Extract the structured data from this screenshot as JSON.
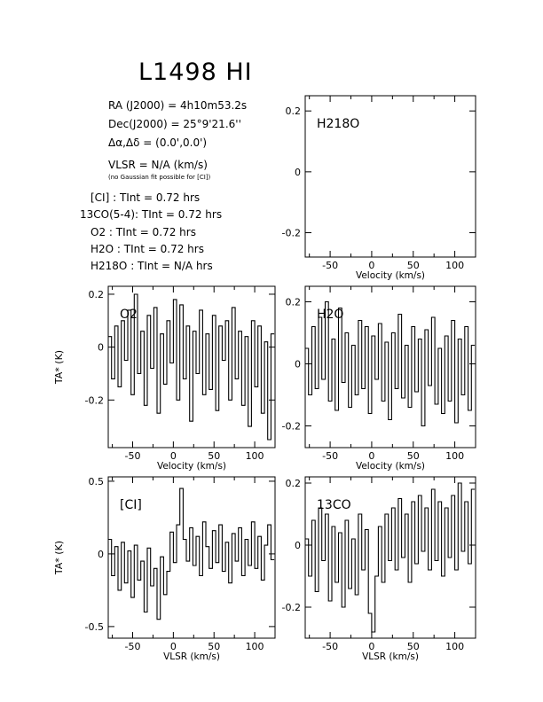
{
  "title": "L1498 HI",
  "info": {
    "ra": "RA (J2000) =  4h10m53.2s",
    "dec": "Dec(J2000) =  25°9'21.6''",
    "offset": "Δα,Δδ = (0.0',0.0')",
    "vlsr": "VLSR  = N/A  (km/s)",
    "note": "(no Gaussian fit possible for [CI])",
    "tint": [
      "[CI] :  TInt = 0.72 hrs",
      "13CO(5-4): TInt = 0.72 hrs",
      "O2 :  TInt = 0.72 hrs",
      "H2O :  TInt = 0.72 hrs",
      "H218O :  TInt = N/A  hrs"
    ]
  },
  "chart_data": [
    {
      "type": "line",
      "panel": "top-right",
      "annotation": "H218O",
      "xlabel": "Velocity (km/s)",
      "ylabel": "",
      "xlim": [
        -80,
        125
      ],
      "ylim": [
        -0.28,
        0.25
      ],
      "xticks": [
        -50,
        0,
        50,
        100
      ],
      "yticks": [
        -0.2,
        0,
        0.2
      ],
      "series": [
        {
          "x": [],
          "y": []
        }
      ]
    },
    {
      "type": "line",
      "panel": "middle-left",
      "annotation": "O2",
      "xlabel": "Velocity (km/s)",
      "ylabel": "TA* (K)",
      "xlim": [
        -80,
        125
      ],
      "ylim": [
        -0.38,
        0.23
      ],
      "xticks": [
        -50,
        0,
        50,
        100
      ],
      "yticks": [
        -0.2,
        0,
        0.2
      ],
      "series": [
        {
          "x": [
            -78,
            -74,
            -70,
            -66,
            -62,
            -58,
            -54,
            -50,
            -46,
            -42,
            -38,
            -34,
            -30,
            -26,
            -22,
            -18,
            -14,
            -10,
            -6,
            -2,
            2,
            6,
            10,
            14,
            18,
            22,
            26,
            30,
            34,
            38,
            42,
            46,
            50,
            54,
            58,
            62,
            66,
            70,
            74,
            78,
            82,
            86,
            90,
            94,
            98,
            102,
            106,
            110,
            114,
            118,
            122
          ],
          "y": [
            0.04,
            -0.12,
            0.08,
            -0.15,
            0.1,
            -0.05,
            0.14,
            -0.18,
            0.2,
            -0.1,
            0.06,
            -0.22,
            0.12,
            -0.08,
            0.15,
            -0.25,
            0.05,
            -0.14,
            0.1,
            -0.06,
            0.18,
            -0.2,
            0.16,
            -0.12,
            0.08,
            -0.28,
            0.06,
            -0.1,
            0.14,
            -0.18,
            0.05,
            -0.16,
            0.12,
            -0.24,
            0.08,
            -0.05,
            0.1,
            -0.2,
            0.15,
            -0.12,
            0.06,
            -0.22,
            0.04,
            -0.3,
            0.1,
            -0.15,
            0.08,
            -0.25,
            0.02,
            -0.35,
            0.05
          ]
        }
      ]
    },
    {
      "type": "line",
      "panel": "middle-right",
      "annotation": "H2O",
      "xlabel": "Velocity (km/s)",
      "ylabel": "",
      "xlim": [
        -80,
        125
      ],
      "ylim": [
        -0.27,
        0.25
      ],
      "xticks": [
        -50,
        0,
        50,
        100
      ],
      "yticks": [
        -0.2,
        0,
        0.2
      ],
      "series": [
        {
          "x": [
            -78,
            -74,
            -70,
            -66,
            -62,
            -58,
            -54,
            -50,
            -46,
            -42,
            -38,
            -34,
            -30,
            -26,
            -22,
            -18,
            -14,
            -10,
            -6,
            -2,
            2,
            6,
            10,
            14,
            18,
            22,
            26,
            30,
            34,
            38,
            42,
            46,
            50,
            54,
            58,
            62,
            66,
            70,
            74,
            78,
            82,
            86,
            90,
            94,
            98,
            102,
            106,
            110,
            114,
            118,
            122
          ],
          "y": [
            0.05,
            -0.1,
            0.12,
            -0.08,
            0.15,
            -0.05,
            0.2,
            -0.12,
            0.08,
            -0.15,
            0.18,
            -0.06,
            0.1,
            -0.14,
            0.06,
            -0.1,
            0.14,
            -0.08,
            0.12,
            -0.16,
            0.09,
            -0.05,
            0.13,
            -0.12,
            0.07,
            -0.18,
            0.1,
            -0.08,
            0.16,
            -0.11,
            0.06,
            -0.14,
            0.12,
            -0.09,
            0.08,
            -0.2,
            0.11,
            -0.07,
            0.15,
            -0.13,
            0.05,
            -0.16,
            0.09,
            -0.12,
            0.14,
            -0.19,
            0.08,
            -0.1,
            0.12,
            -0.15,
            0.06
          ]
        }
      ]
    },
    {
      "type": "line",
      "panel": "bottom-left",
      "annotation": "[CI]",
      "xlabel": "VLSR (km/s)",
      "ylabel": "TA* (K)",
      "xlim": [
        -80,
        125
      ],
      "ylim": [
        -0.58,
        0.53
      ],
      "xticks": [
        -50,
        0,
        50,
        100
      ],
      "yticks": [
        -0.5,
        0,
        0.5
      ],
      "series": [
        {
          "x": [
            -78,
            -74,
            -70,
            -66,
            -62,
            -58,
            -54,
            -50,
            -46,
            -42,
            -38,
            -34,
            -30,
            -26,
            -22,
            -18,
            -14,
            -10,
            -6,
            -2,
            2,
            6,
            10,
            14,
            18,
            22,
            26,
            30,
            34,
            38,
            42,
            46,
            50,
            54,
            58,
            62,
            66,
            70,
            74,
            78,
            82,
            86,
            90,
            94,
            98,
            102,
            106,
            110,
            114,
            118,
            122
          ],
          "y": [
            0.1,
            -0.15,
            0.05,
            -0.25,
            0.08,
            -0.2,
            0.02,
            -0.3,
            0.06,
            -0.18,
            -0.05,
            -0.4,
            0.04,
            -0.22,
            -0.1,
            -0.45,
            -0.02,
            -0.28,
            -0.12,
            0.15,
            -0.06,
            0.2,
            0.45,
            0.1,
            -0.05,
            0.18,
            -0.08,
            0.12,
            -0.15,
            0.22,
            0.05,
            -0.1,
            0.16,
            -0.06,
            0.2,
            -0.12,
            0.08,
            -0.2,
            0.14,
            -0.05,
            0.18,
            -0.15,
            0.1,
            -0.08,
            0.22,
            -0.1,
            0.12,
            -0.18,
            0.06,
            0.2,
            -0.04
          ]
        }
      ]
    },
    {
      "type": "line",
      "panel": "bottom-right",
      "annotation": "13CO",
      "xlabel": "VLSR (km/s)",
      "ylabel": "",
      "xlim": [
        -80,
        125
      ],
      "ylim": [
        -0.3,
        0.22
      ],
      "xticks": [
        -50,
        0,
        50,
        100
      ],
      "yticks": [
        -0.2,
        0,
        0.2
      ],
      "series": [
        {
          "x": [
            -78,
            -74,
            -70,
            -66,
            -62,
            -58,
            -54,
            -50,
            -46,
            -42,
            -38,
            -34,
            -30,
            -26,
            -22,
            -18,
            -14,
            -10,
            -6,
            -2,
            2,
            6,
            10,
            14,
            18,
            22,
            26,
            30,
            34,
            38,
            42,
            46,
            50,
            54,
            58,
            62,
            66,
            70,
            74,
            78,
            82,
            86,
            90,
            94,
            98,
            102,
            106,
            110,
            114,
            118,
            122
          ],
          "y": [
            0.02,
            -0.1,
            0.08,
            -0.15,
            0.12,
            -0.05,
            0.1,
            -0.18,
            0.06,
            -0.12,
            0.04,
            -0.2,
            0.08,
            -0.14,
            0.02,
            -0.16,
            0.1,
            -0.08,
            0.05,
            -0.22,
            -0.28,
            -0.1,
            0.06,
            -0.12,
            0.1,
            -0.05,
            0.12,
            -0.08,
            0.15,
            -0.04,
            0.1,
            -0.12,
            0.14,
            -0.06,
            0.16,
            -0.02,
            0.12,
            -0.08,
            0.18,
            -0.05,
            0.14,
            -0.1,
            0.12,
            -0.04,
            0.16,
            -0.08,
            0.2,
            -0.02,
            0.14,
            -0.06,
            0.18
          ]
        }
      ]
    }
  ]
}
